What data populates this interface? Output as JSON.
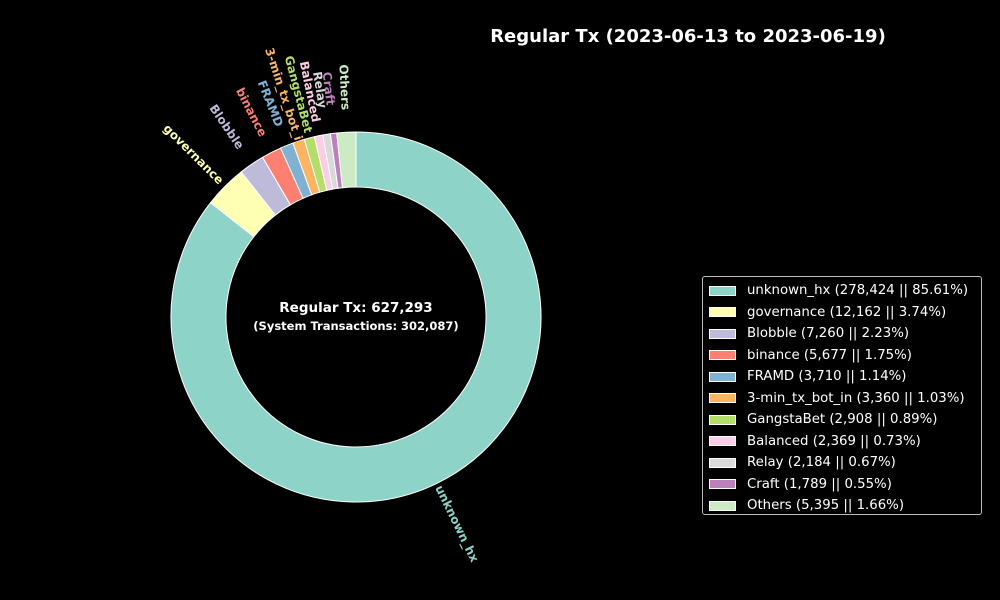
{
  "chart_data": {
    "type": "pie",
    "style": "donut",
    "title": "Regular Tx (2023-06-13 to 2023-06-19)",
    "center_text": {
      "main": "Regular Tx: 627,293",
      "sub": "(System Transactions: 302,087)"
    },
    "start_angle": "90° (top), clockwise",
    "legend_position": "right",
    "slices": [
      {
        "label": "unknown_hx",
        "value": 278424,
        "percent": "85.61%",
        "legend": "unknown_hx (278,424 || 85.61%)",
        "color": "#8dd3c7"
      },
      {
        "label": "governance",
        "value": 12162,
        "percent": "3.74%",
        "legend": "governance (12,162 || 3.74%)",
        "color": "#ffffb3"
      },
      {
        "label": "Blobble",
        "value": 7260,
        "percent": "2.23%",
        "legend": "Blobble (7,260 || 2.23%)",
        "color": "#bebada"
      },
      {
        "label": "binance",
        "value": 5677,
        "percent": "1.75%",
        "legend": "binance (5,677 || 1.75%)",
        "color": "#fb8072"
      },
      {
        "label": "FRAMD",
        "value": 3710,
        "percent": "1.14%",
        "legend": "FRAMD (3,710 || 1.14%)",
        "color": "#80b1d3"
      },
      {
        "label": "3-min_tx_bot_in",
        "value": 3360,
        "percent": "1.03%",
        "legend": "3-min_tx_bot_in (3,360 || 1.03%)",
        "color": "#fdb462"
      },
      {
        "label": "GangstaBet",
        "value": 2908,
        "percent": "0.89%",
        "legend": "GangstaBet (2,908 || 0.89%)",
        "color": "#b3de69"
      },
      {
        "label": "Balanced",
        "value": 2369,
        "percent": "0.73%",
        "legend": "Balanced (2,369 || 0.73%)",
        "color": "#fccde5"
      },
      {
        "label": "Relay",
        "value": 2184,
        "percent": "0.67%",
        "legend": "Relay (2,184 || 0.67%)",
        "color": "#d9d9d9"
      },
      {
        "label": "Craft",
        "value": 1789,
        "percent": "0.55%",
        "legend": "Craft (1,789 || 0.55%)",
        "color": "#bc80bd"
      },
      {
        "label": "Others",
        "value": 5395,
        "percent": "1.66%",
        "legend": "Others (5,395 || 1.66%)",
        "color": "#ccebc5"
      }
    ]
  }
}
